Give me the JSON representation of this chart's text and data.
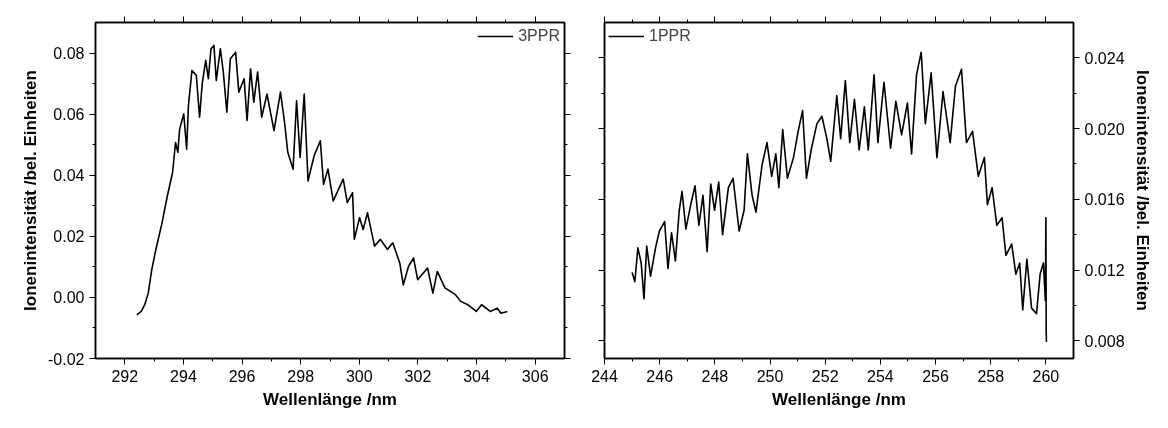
{
  "chart_data": [
    {
      "type": "line",
      "xlabel": "Wellenlänge /nm",
      "ylabel": "Ionenintensität /bel. Einheiten",
      "xlim": [
        291,
        307
      ],
      "ylim": [
        -0.02,
        0.09
      ],
      "xticks": [
        292,
        294,
        296,
        298,
        300,
        302,
        304,
        306
      ],
      "yticks": [
        {
          "value": -0.02,
          "label": "-0.02"
        },
        {
          "value": 0.0,
          "label": "0.00"
        },
        0.02,
        0.04,
        0.06,
        0.08
      ],
      "grid": false,
      "legend": "top right",
      "marker": "none",
      "line_style": "solid",
      "series": [
        {
          "name": "3PPR",
          "color": "#000000",
          "x": [
            292.41,
            292.56,
            292.68,
            292.8,
            292.92,
            293.06,
            293.27,
            293.45,
            293.63,
            293.73,
            293.81,
            293.87,
            294.01,
            294.11,
            294.17,
            294.29,
            294.44,
            294.55,
            294.64,
            294.76,
            294.85,
            294.94,
            295.04,
            295.12,
            295.26,
            295.36,
            295.48,
            295.6,
            295.78,
            295.89,
            296.07,
            296.17,
            296.29,
            296.4,
            296.53,
            296.67,
            296.85,
            296.98,
            297.09,
            297.31,
            297.45,
            297.56,
            297.74,
            297.86,
            297.98,
            298.12,
            298.25,
            298.46,
            298.67,
            298.78,
            298.93,
            299.11,
            299.45,
            299.59,
            299.77,
            299.83,
            300.01,
            300.13,
            300.28,
            300.52,
            300.72,
            300.96,
            301.14,
            301.38,
            301.5,
            301.68,
            301.85,
            301.99,
            302.33,
            302.51,
            302.66,
            302.92,
            303.28,
            303.46,
            303.7,
            303.99,
            304.17,
            304.47,
            304.71,
            304.83,
            305.05
          ],
          "values": [
            -0.0057,
            -0.0046,
            -0.0024,
            0.0014,
            0.0091,
            0.0157,
            0.0244,
            0.0332,
            0.0409,
            0.0507,
            0.0475,
            0.0551,
            0.0601,
            0.0485,
            0.0628,
            0.0743,
            0.0727,
            0.059,
            0.0699,
            0.0776,
            0.0716,
            0.0814,
            0.0825,
            0.071,
            0.0814,
            0.0738,
            0.0606,
            0.0781,
            0.0803,
            0.0672,
            0.0716,
            0.0579,
            0.0748,
            0.0639,
            0.0738,
            0.059,
            0.0666,
            0.0601,
            0.0546,
            0.0672,
            0.0573,
            0.0475,
            0.042,
            0.0644,
            0.0458,
            0.0666,
            0.0381,
            0.0464,
            0.0513,
            0.037,
            0.042,
            0.0316,
            0.0387,
            0.031,
            0.0343,
            0.019,
            0.0261,
            0.0222,
            0.0277,
            0.0168,
            0.019,
            0.0157,
            0.0179,
            0.0113,
            0.0041,
            0.0102,
            0.0129,
            0.0058,
            0.0096,
            0.0014,
            0.0085,
            0.0031,
            0.0009,
            -0.0013,
            -0.0024,
            -0.0046,
            -0.0024,
            -0.0046,
            -0.0035,
            -0.0052,
            -0.0046
          ]
        }
      ]
    },
    {
      "type": "line",
      "xlabel": "Wellenlänge /nm",
      "y2label": "Ionenintensität /bel. Einheiten",
      "xlim": [
        244,
        261
      ],
      "y2lim": [
        0.007,
        0.026
      ],
      "xticks": [
        244,
        246,
        248,
        250,
        252,
        254,
        256,
        258,
        260
      ],
      "y2ticks": [
        0.008,
        0.012,
        0.016,
        {
          "value": 0.02,
          "label": "0.020"
        },
        0.024
      ],
      "grid": false,
      "legend": "top left",
      "marker": "none",
      "line_style": "solid",
      "series": [
        {
          "name": "1PPR",
          "color": "#000000",
          "axis": "y2",
          "x": [
            245.0,
            245.1,
            245.21,
            245.33,
            245.43,
            245.53,
            245.67,
            245.85,
            245.99,
            246.18,
            246.3,
            246.43,
            246.57,
            246.71,
            246.81,
            246.95,
            247.14,
            247.28,
            247.42,
            247.57,
            247.72,
            247.85,
            247.99,
            248.14,
            248.28,
            248.49,
            248.66,
            248.88,
            249.06,
            249.18,
            249.35,
            249.49,
            249.71,
            249.89,
            250.06,
            250.21,
            250.32,
            250.46,
            250.63,
            250.85,
            251.02,
            251.18,
            251.32,
            251.49,
            251.7,
            251.88,
            252.06,
            252.2,
            252.42,
            252.56,
            252.73,
            252.89,
            253.06,
            253.23,
            253.42,
            253.56,
            253.77,
            253.91,
            254.13,
            254.37,
            254.56,
            254.77,
            254.98,
            255.13,
            255.31,
            255.48,
            255.63,
            255.84,
            256.05,
            256.27,
            256.53,
            256.72,
            256.94,
            257.12,
            257.34,
            257.55,
            257.77,
            257.88,
            258.05,
            258.22,
            258.41,
            258.55,
            258.76,
            258.91,
            259.05,
            259.16,
            259.31,
            259.48,
            259.66,
            259.79,
            259.91,
            259.98,
            260.0,
            260.01,
            260.02
          ],
          "values": [
            0.01187,
            0.01134,
            0.01326,
            0.0124,
            0.01038,
            0.01336,
            0.01166,
            0.01326,
            0.01421,
            0.01474,
            0.01209,
            0.01411,
            0.01251,
            0.01538,
            0.01645,
            0.01432,
            0.01581,
            0.01677,
            0.01453,
            0.01623,
            0.01304,
            0.01687,
            0.01538,
            0.01698,
            0.014,
            0.01666,
            0.01719,
            0.01421,
            0.01538,
            0.01857,
            0.01623,
            0.01528,
            0.01794,
            0.01921,
            0.0173,
            0.01857,
            0.01666,
            0.01994,
            0.01719,
            0.01836,
            0.01985,
            0.02102,
            0.01719,
            0.01879,
            0.02028,
            0.0207,
            0.01943,
            0.01815,
            0.02187,
            0.01943,
            0.02272,
            0.01921,
            0.02166,
            0.01879,
            0.02123,
            0.01879,
            0.02304,
            0.01921,
            0.02262,
            0.01889,
            0.02155,
            0.01964,
            0.02145,
            0.01857,
            0.02304,
            0.02432,
            0.02028,
            0.02315,
            0.01836,
            0.02209,
            0.01921,
            0.0224,
            0.02336,
            0.01921,
            0.01985,
            0.0173,
            0.01836,
            0.0157,
            0.01666,
            0.01453,
            0.01496,
            0.01283,
            0.01347,
            0.01177,
            0.0124,
            0.00974,
            0.01262,
            0.00985,
            0.00953,
            0.01177,
            0.0124,
            0.01028,
            0.01496,
            0.00857,
            0.00794
          ]
        }
      ]
    }
  ]
}
